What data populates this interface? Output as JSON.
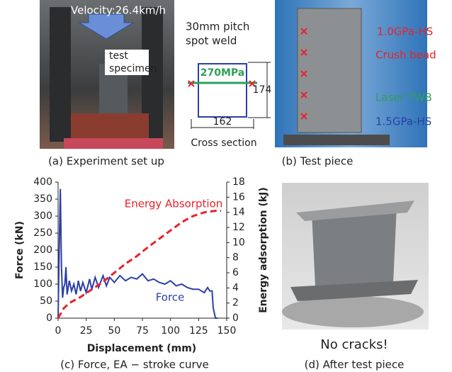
{
  "panels": {
    "a": {
      "caption": "(a) Experiment set up",
      "velocity": "Velocity:26.4km/h",
      "specimen_label": [
        "test",
        "specimen"
      ]
    },
    "b": {
      "caption": "(b) Test piece",
      "weld_label": [
        "30mm pitch",
        "spot weld"
      ],
      "material": "270MPa",
      "height": "174",
      "width": "162",
      "section_title": "Cross section",
      "labels": [
        "1.0GPa-HS",
        "Crush bead",
        "Laser TWB",
        "1.5GPa-HS"
      ]
    },
    "d": {
      "caption": "(d) After test piece",
      "note": "No cracks!"
    }
  },
  "chart_data": {
    "type": "line",
    "caption": "(c) Force, EA − stroke curve",
    "x_label": "Displacement (mm)",
    "y_label": "Force (kN)",
    "y2_label": "Energy adsorption (kJ)",
    "xlim": [
      0,
      150
    ],
    "xticks": [
      0,
      25,
      50,
      75,
      100,
      125,
      150
    ],
    "ylim": [
      0,
      400
    ],
    "yticks": [
      0,
      50,
      100,
      150,
      200,
      250,
      300,
      350,
      400
    ],
    "y2lim": [
      0,
      18
    ],
    "y2ticks": [
      0,
      2,
      4,
      6,
      8,
      10,
      12,
      14,
      16,
      18
    ],
    "series": [
      {
        "name": "Force",
        "color": "#2b3fa8",
        "dashed": false,
        "x": [
          0,
          1,
          2,
          3,
          4,
          5,
          6,
          7,
          8,
          10,
          12,
          14,
          16,
          18,
          20,
          22,
          25,
          28,
          30,
          33,
          36,
          40,
          43,
          46,
          50,
          55,
          60,
          65,
          70,
          75,
          80,
          85,
          90,
          95,
          100,
          105,
          110,
          115,
          120,
          125,
          130,
          133,
          135,
          137,
          138,
          140,
          142
        ],
        "values": [
          0,
          200,
          380,
          150,
          60,
          90,
          100,
          150,
          70,
          110,
          80,
          100,
          70,
          110,
          80,
          105,
          75,
          115,
          85,
          120,
          90,
          125,
          95,
          120,
          105,
          125,
          110,
          120,
          115,
          130,
          110,
          115,
          105,
          100,
          110,
          95,
          100,
          90,
          85,
          85,
          75,
          90,
          80,
          80,
          30,
          0,
          0
        ]
      },
      {
        "name": "Energy Absorption",
        "color": "#e8232a",
        "dashed": true,
        "axis": "y2",
        "x": [
          0,
          5,
          10,
          20,
          30,
          40,
          50,
          60,
          70,
          80,
          90,
          100,
          110,
          120,
          130,
          140,
          145
        ],
        "values": [
          0,
          1.3,
          2,
          2.8,
          3.8,
          4.8,
          6,
          7.2,
          8.2,
          9.4,
          10.5,
          11.6,
          12.7,
          13.5,
          14,
          14.2,
          14.2
        ]
      }
    ]
  }
}
